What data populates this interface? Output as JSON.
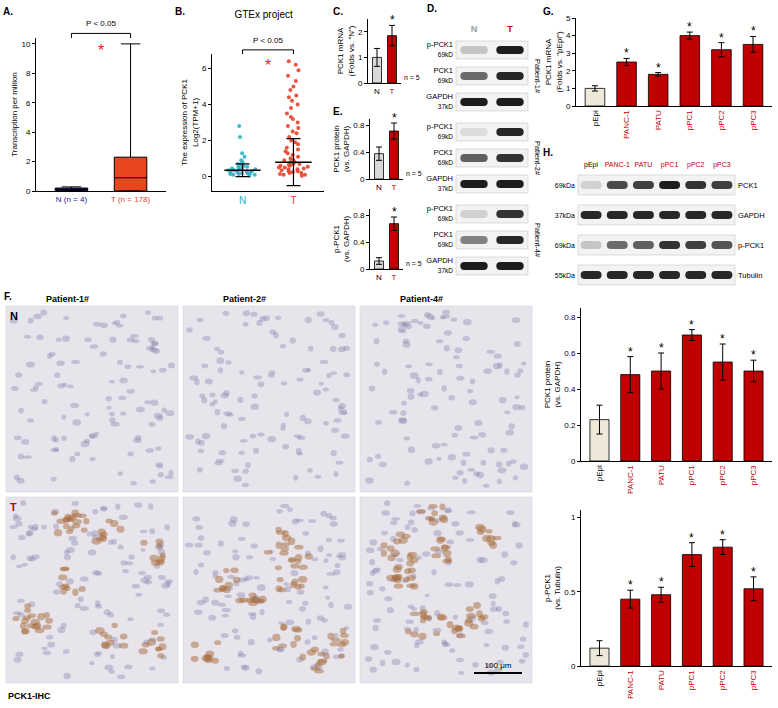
{
  "chart_data": [
    {
      "panel": "A.",
      "type": "box",
      "categories": [
        "N (n = 4)",
        "T (n = 178)"
      ],
      "boxes": [
        {
          "whisker_low": 0,
          "q1": 0.02,
          "median": 0.08,
          "q3": 0.2,
          "whisker_high": 0.28
        },
        {
          "whisker_low": 0,
          "q1": 0,
          "median": 0.9,
          "q3": 2.3,
          "whisker_high": 10
        }
      ],
      "colors": [
        "#1c1c8c",
        "#e8461e"
      ],
      "y_label": [
        "Transcription per million"
      ],
      "ylim": [
        0,
        10.4
      ],
      "yticks": [
        0,
        2,
        4,
        6,
        8,
        10
      ],
      "annotations": [
        "P < 0.05",
        "*"
      ]
    },
    {
      "panel": "B.",
      "type": "scatter",
      "title": "GTEx project",
      "categories": [
        "N",
        "T"
      ],
      "colors": [
        "#2ab0c5",
        "#e8412c"
      ],
      "points": [
        [
          0.1,
          0.2,
          0.3,
          0.15,
          0.4,
          0.5,
          0.25,
          0.35,
          0.6,
          0.05,
          0.45,
          0.3,
          0.2,
          0.7,
          0.8,
          0.1,
          0.55,
          0.35,
          0.9,
          1.1,
          0.25,
          0.4,
          0.15,
          0.3,
          1.3,
          0.5,
          2.2,
          2.8,
          0.65,
          0.2
        ],
        [
          0.1,
          0.2,
          0.3,
          0.4,
          0.5,
          0.6,
          0.7,
          0.8,
          0.9,
          1.0,
          1.2,
          1.4,
          1.6,
          1.8,
          2.0,
          2.2,
          2.5,
          2.8,
          3.0,
          3.2,
          3.5,
          3.8,
          4.0,
          4.2,
          4.5,
          4.8,
          5.0,
          5.3,
          5.6,
          5.9,
          6.2,
          6.4,
          0.15,
          0.25,
          0.35,
          0.45,
          0.55,
          0.65,
          0.05,
          0.3,
          0.5,
          0.8,
          1.1,
          1.3,
          0.2,
          0.4,
          0.6,
          0.9,
          1.5,
          2.4,
          3.3,
          0.1,
          0.7,
          1.9,
          2.7,
          4.4
        ]
      ],
      "mean": [
        0.35,
        0.8
      ],
      "sd": [
        0.35,
        1.3
      ],
      "y_label": [
        "The expression of PCK1",
        "Log2(TPM+1)"
      ],
      "ylim": [
        -0.8,
        6.8
      ],
      "yticks": [
        0,
        2,
        4,
        6
      ],
      "annotations": [
        "P < 0.05",
        "*"
      ]
    },
    {
      "panel": "C.",
      "type": "bar",
      "categories": [
        "N",
        "T"
      ],
      "values": [
        1,
        1.85
      ],
      "errors": [
        0.35,
        0.4
      ],
      "colors": [
        "#d9d9d9",
        "#c00000"
      ],
      "significance": [
        null,
        "*"
      ],
      "note": "n = 5",
      "y_label": [
        "PCK1 mRNA",
        "(Folds vs. \"N\")"
      ],
      "ylim": [
        0,
        2.5
      ],
      "yticks": [
        0,
        1,
        2
      ]
    },
    {
      "panel": "E.",
      "type": "bar",
      "categories": [
        "N",
        "T"
      ],
      "values": [
        0.38,
        0.72
      ],
      "errors": [
        0.1,
        0.12
      ],
      "colors": [
        "#d9d9d9",
        "#c00000"
      ],
      "significance": [
        null,
        "*"
      ],
      "note": "n = 5",
      "y_label": [
        "PCK1 protein",
        "(vs. GAPDH)"
      ],
      "ylim": [
        0,
        0.9
      ],
      "yticks": [
        0,
        0.4,
        0.8
      ]
    },
    {
      "type": "bar",
      "categories": [
        "N",
        "T"
      ],
      "values": [
        0.12,
        0.68
      ],
      "errors": [
        0.05,
        0.1
      ],
      "colors": [
        "#d9d9d9",
        "#c00000"
      ],
      "significance": [
        null,
        "*"
      ],
      "note": "n = 5",
      "y_label": [
        "p-PCK1",
        "(vs. GAPDH)"
      ],
      "ylim": [
        0,
        0.9
      ],
      "yticks": [
        0,
        0.4,
        0.8
      ]
    },
    {
      "panel": "G.",
      "type": "bar",
      "categories": [
        "pEpi",
        "PANC-1",
        "PATU",
        "pPC1",
        "pPC2",
        "pPC3"
      ],
      "values": [
        1,
        2.5,
        1.8,
        4.0,
        3.2,
        3.5
      ],
      "errors": [
        0.15,
        0.2,
        0.1,
        0.2,
        0.4,
        0.45
      ],
      "colors": [
        "#ede8d8",
        "#c00000",
        "#c00000",
        "#c00000",
        "#c00000",
        "#c00000"
      ],
      "significance": [
        null,
        "*",
        "*",
        "*",
        "*",
        "*"
      ],
      "y_label": [
        "PCK1 mRNA",
        "(Folds vs. \"pEpi\")"
      ],
      "ylim": [
        0,
        5
      ],
      "yticks": [
        0,
        1,
        2,
        3,
        4,
        5
      ]
    },
    {
      "type": "bar",
      "categories": [
        "pEpi",
        "PANC-1",
        "PATU",
        "pPC1",
        "pPC2",
        "pPC3"
      ],
      "values": [
        0.23,
        0.48,
        0.5,
        0.7,
        0.55,
        0.5
      ],
      "errors": [
        0.08,
        0.1,
        0.1,
        0.03,
        0.1,
        0.06
      ],
      "colors": [
        "#ede8d8",
        "#c00000",
        "#c00000",
        "#c00000",
        "#c00000",
        "#c00000"
      ],
      "significance": [
        null,
        "*",
        "*",
        "*",
        "*",
        "*"
      ],
      "y_label": [
        "PCK1 protein",
        "(vs. GAPDH)"
      ],
      "ylim": [
        0,
        0.85
      ],
      "yticks": [
        0,
        0.2,
        0.4,
        0.6,
        0.8
      ]
    },
    {
      "type": "bar",
      "categories": [
        "pEpi",
        "PANC-1",
        "PATU",
        "pPC1",
        "pPC2",
        "pPC3"
      ],
      "values": [
        0.12,
        0.45,
        0.48,
        0.75,
        0.8,
        0.52
      ],
      "errors": [
        0.05,
        0.06,
        0.05,
        0.08,
        0.05,
        0.08
      ],
      "colors": [
        "#ede8d8",
        "#c00000",
        "#c00000",
        "#c00000",
        "#c00000",
        "#c00000"
      ],
      "significance": [
        null,
        "*",
        "*",
        "*",
        "*",
        "*"
      ],
      "y_label": [
        "p-PCK1",
        "(vs. Tubulin)"
      ],
      "ylim": [
        0,
        1.05
      ],
      "yticks": [
        0,
        0.5,
        1
      ]
    }
  ],
  "blots": [
    {
      "panel": "D.",
      "lanes": [
        "N",
        "T"
      ],
      "colors": [
        "#999999",
        "#c00000"
      ],
      "groups": [
        {
          "label": "Patient-1#",
          "rows": [
            {
              "name": "p-PCK1",
              "size": "69kD",
              "bands": [
                0.2,
                0.95
              ]
            },
            {
              "name": "PCK1",
              "size": "69kD",
              "bands": [
                0.6,
                0.9
              ]
            },
            {
              "name": "GAPDH",
              "size": "37kD",
              "bands": [
                0.95,
                0.95
              ]
            }
          ]
        },
        {
          "label": "Patient-2#",
          "rows": [
            {
              "name": "p-PCK1",
              "size": "69kD",
              "bands": [
                0.1,
                0.9
              ]
            },
            {
              "name": "PCK1",
              "size": "69kD",
              "bands": [
                0.65,
                0.85
              ]
            },
            {
              "name": "GAPDH",
              "size": "37kD",
              "bands": [
                0.95,
                0.95
              ]
            }
          ]
        },
        {
          "label": "Patient-4#",
          "rows": [
            {
              "name": "p-PCK1",
              "size": "69kD",
              "bands": [
                0.15,
                0.85
              ]
            },
            {
              "name": "PCK1",
              "size": "69kD",
              "bands": [
                0.5,
                0.9
              ]
            },
            {
              "name": "GAPDH",
              "size": "37kD",
              "bands": [
                0.95,
                0.95
              ]
            }
          ]
        }
      ]
    },
    {
      "panel": "H.",
      "lanes": [
        "pEpi",
        "PANC-1",
        "PATU",
        "pPC1",
        "pPC2",
        "pPC3"
      ],
      "colors": [
        "#000000",
        "#c00000",
        "#c00000",
        "#c00000",
        "#c00000",
        "#c00000"
      ],
      "rows": [
        {
          "name": "PCK1",
          "size": "69kDa",
          "bands": [
            0.15,
            0.75,
            0.8,
            0.95,
            0.85,
            0.8
          ]
        },
        {
          "name": "GAPDH",
          "size": "37kDa",
          "bands": [
            0.9,
            0.9,
            0.9,
            0.9,
            0.9,
            0.9
          ]
        },
        {
          "name": "p-PCK1",
          "size": "69kDa",
          "bands": [
            0.2,
            0.6,
            0.65,
            0.85,
            0.8,
            0.7
          ]
        },
        {
          "name": "Tubulin",
          "size": "55kDa",
          "bands": [
            0.9,
            0.9,
            0.9,
            0.9,
            0.9,
            0.9
          ]
        }
      ]
    }
  ],
  "ihc": {
    "panel": "F.",
    "columns": [
      "Patient-1#",
      "Patient-2#",
      "Patient-4#"
    ],
    "rows": [
      "N",
      "T"
    ],
    "colors": [
      "#000000",
      "#c00000"
    ],
    "stain": [
      false,
      true
    ],
    "scale_bar": "100 μm",
    "caption": "PCK1-IHC"
  }
}
